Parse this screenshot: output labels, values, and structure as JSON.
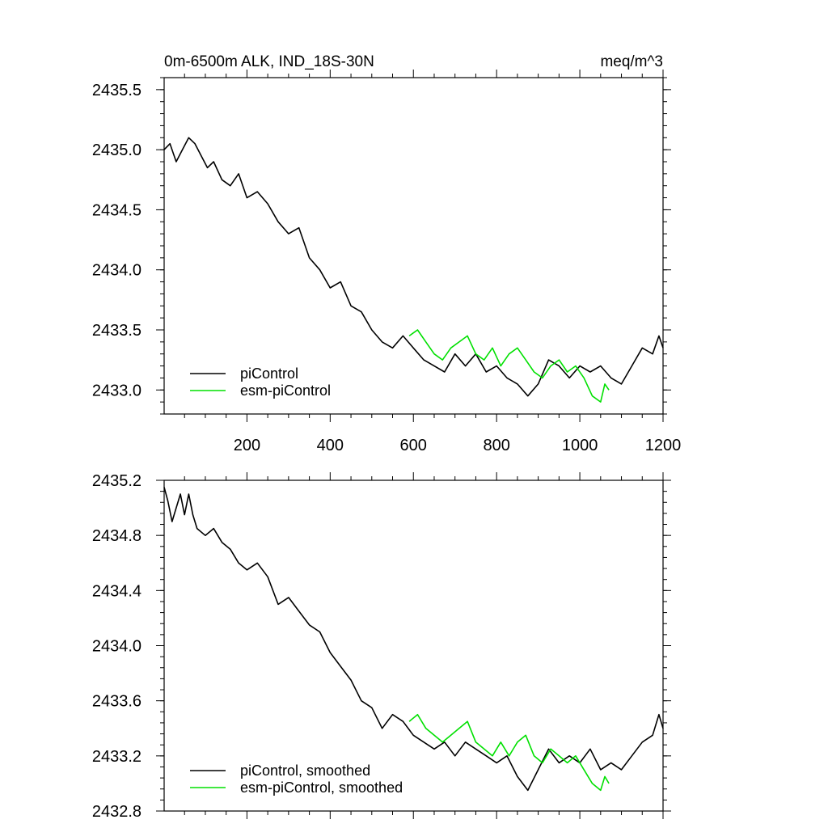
{
  "title_left": "0m-6500m ALK, IND_18S-30N",
  "title_right": "meq/m^3",
  "colors": {
    "piControl": "#000000",
    "esm": "#00e000"
  },
  "chart_data": [
    {
      "type": "line",
      "xlim": [
        1,
        1200
      ],
      "ylim": [
        2432.8,
        2435.6
      ],
      "x_ticks": [
        200,
        400,
        600,
        800,
        1000,
        1200
      ],
      "x_tick_labels": [
        "200",
        "400",
        "600",
        "800",
        "1000",
        "1200"
      ],
      "y_ticks": [
        2433.0,
        2433.5,
        2434.0,
        2434.5,
        2435.0,
        2435.5
      ],
      "y_tick_labels": [
        "2433.0",
        "2433.5",
        "2434.0",
        "2434.5",
        "2435.0",
        "2435.5"
      ],
      "legend_position": "bottom-left",
      "series": [
        {
          "name": "piControl",
          "x": [
            1,
            15,
            30,
            45,
            60,
            75,
            90,
            105,
            120,
            140,
            160,
            180,
            200,
            225,
            250,
            275,
            300,
            325,
            350,
            375,
            400,
            425,
            450,
            475,
            500,
            525,
            550,
            575,
            600,
            625,
            650,
            675,
            700,
            725,
            750,
            775,
            800,
            825,
            850,
            875,
            900,
            925,
            950,
            975,
            1000,
            1025,
            1050,
            1075,
            1100,
            1125,
            1150,
            1175,
            1190,
            1200
          ],
          "y": [
            2435.0,
            2435.05,
            2434.9,
            2435.0,
            2435.1,
            2435.05,
            2434.95,
            2434.85,
            2434.9,
            2434.75,
            2434.7,
            2434.8,
            2434.6,
            2434.65,
            2434.55,
            2434.4,
            2434.3,
            2434.35,
            2434.1,
            2434.0,
            2433.85,
            2433.9,
            2433.7,
            2433.65,
            2433.5,
            2433.4,
            2433.35,
            2433.45,
            2433.35,
            2433.25,
            2433.2,
            2433.15,
            2433.3,
            2433.2,
            2433.3,
            2433.15,
            2433.2,
            2433.1,
            2433.05,
            2432.95,
            2433.05,
            2433.25,
            2433.2,
            2433.1,
            2433.2,
            2433.15,
            2433.2,
            2433.1,
            2433.05,
            2433.2,
            2433.35,
            2433.3,
            2433.45,
            2433.35
          ]
        },
        {
          "name": "esm-piControl",
          "x": [
            590,
            610,
            630,
            650,
            670,
            690,
            710,
            730,
            750,
            770,
            790,
            810,
            830,
            850,
            870,
            890,
            910,
            930,
            950,
            970,
            990,
            1010,
            1030,
            1050,
            1060,
            1070
          ],
          "y": [
            2433.45,
            2433.5,
            2433.4,
            2433.3,
            2433.25,
            2433.35,
            2433.4,
            2433.45,
            2433.3,
            2433.25,
            2433.35,
            2433.2,
            2433.3,
            2433.35,
            2433.25,
            2433.15,
            2433.1,
            2433.2,
            2433.25,
            2433.15,
            2433.2,
            2433.1,
            2432.95,
            2432.9,
            2433.05,
            2433.0
          ]
        }
      ]
    },
    {
      "type": "line",
      "xlim": [
        1,
        1200
      ],
      "ylim": [
        2432.8,
        2435.2
      ],
      "x_ticks": [
        200,
        400,
        600,
        800,
        1000,
        1200
      ],
      "y_ticks": [
        2432.8,
        2433.2,
        2433.6,
        2434.0,
        2434.4,
        2434.8,
        2435.2
      ],
      "y_tick_labels": [
        "2432.8",
        "2433.2",
        "2433.6",
        "2434.0",
        "2434.4",
        "2434.8",
        "2435.2"
      ],
      "legend_position": "bottom-left",
      "series": [
        {
          "name": "piControl, smoothed",
          "x": [
            1,
            10,
            20,
            30,
            40,
            50,
            60,
            70,
            80,
            100,
            120,
            140,
            160,
            180,
            200,
            225,
            250,
            275,
            300,
            325,
            350,
            375,
            400,
            425,
            450,
            475,
            500,
            525,
            550,
            575,
            600,
            625,
            650,
            675,
            700,
            725,
            750,
            775,
            800,
            825,
            850,
            875,
            900,
            925,
            950,
            975,
            1000,
            1025,
            1050,
            1075,
            1100,
            1125,
            1150,
            1175,
            1190,
            1200
          ],
          "y": [
            2435.15,
            2435.05,
            2434.9,
            2435.0,
            2435.1,
            2434.95,
            2435.1,
            2434.95,
            2434.85,
            2434.8,
            2434.85,
            2434.75,
            2434.7,
            2434.6,
            2434.55,
            2434.6,
            2434.5,
            2434.3,
            2434.35,
            2434.25,
            2434.15,
            2434.1,
            2433.95,
            2433.85,
            2433.75,
            2433.6,
            2433.55,
            2433.4,
            2433.5,
            2433.45,
            2433.35,
            2433.3,
            2433.25,
            2433.3,
            2433.2,
            2433.3,
            2433.25,
            2433.2,
            2433.15,
            2433.2,
            2433.05,
            2432.95,
            2433.1,
            2433.25,
            2433.15,
            2433.2,
            2433.15,
            2433.25,
            2433.1,
            2433.15,
            2433.1,
            2433.2,
            2433.3,
            2433.35,
            2433.5,
            2433.4
          ]
        },
        {
          "name": "esm-piControl, smoothed",
          "x": [
            590,
            610,
            630,
            650,
            670,
            690,
            710,
            730,
            750,
            770,
            790,
            810,
            830,
            850,
            870,
            890,
            910,
            930,
            950,
            970,
            990,
            1010,
            1030,
            1050,
            1060,
            1070
          ],
          "y": [
            2433.45,
            2433.5,
            2433.4,
            2433.35,
            2433.3,
            2433.35,
            2433.4,
            2433.45,
            2433.3,
            2433.25,
            2433.2,
            2433.3,
            2433.2,
            2433.3,
            2433.35,
            2433.2,
            2433.15,
            2433.25,
            2433.2,
            2433.15,
            2433.2,
            2433.1,
            2433.0,
            2432.95,
            2433.05,
            2433.0
          ]
        }
      ]
    }
  ]
}
